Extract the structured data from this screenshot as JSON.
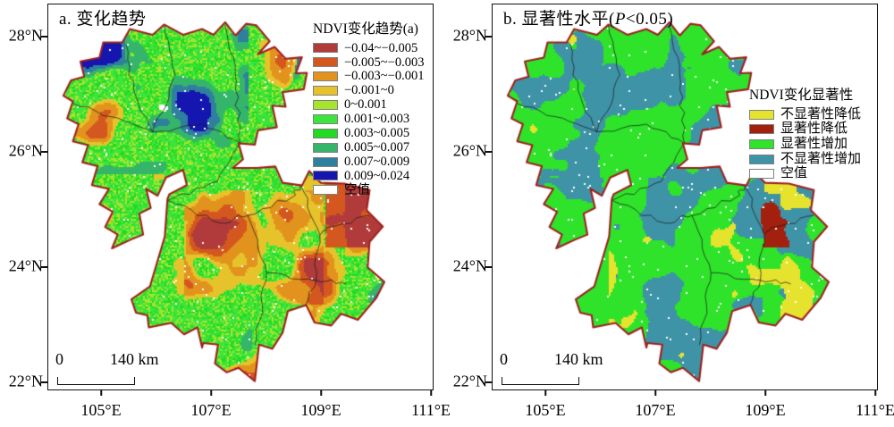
{
  "panels": [
    {
      "id": "a",
      "title": "a. 变化趋势",
      "legend": {
        "title": "NDVI变化趋势(a)",
        "items": [
          {
            "label": "−0.04~−0.005",
            "color": "#b13b3b"
          },
          {
            "label": "−0.005~−0.003",
            "color": "#d4571f"
          },
          {
            "label": "−0.003~−0.001",
            "color": "#e2931d"
          },
          {
            "label": "−0.001~0",
            "color": "#e6c32a"
          },
          {
            "label": "0~0.001",
            "color": "#a6e42d"
          },
          {
            "label": "0.001~0.003",
            "color": "#3ce43c"
          },
          {
            "label": "0.003~0.005",
            "color": "#22da22"
          },
          {
            "label": "0.005~0.007",
            "color": "#35b56a"
          },
          {
            "label": "0.007~0.009",
            "color": "#2f7f9e"
          },
          {
            "label": "0.009~0.024",
            "color": "#1515b0"
          },
          {
            "label": "空值",
            "color": "#ffffff"
          }
        ]
      },
      "x_ticks": [
        "105°E",
        "107°E",
        "109°E",
        "111°E"
      ],
      "y_ticks": [
        "28°N",
        "26°N",
        "24°N",
        "22°N"
      ],
      "scale_bar": {
        "zero": "0",
        "distance": "140 km"
      }
    },
    {
      "id": "b",
      "title_pre": "b. 显著性水平(",
      "title_italic": "P",
      "title_post": "<0.05)",
      "legend": {
        "title": "NDVI变化显著性",
        "items": [
          {
            "label": "不显著性降低",
            "color": "#e6e32e"
          },
          {
            "label": "显著性降低",
            "color": "#a3200e"
          },
          {
            "label": "显著性增加",
            "color": "#2ee32a"
          },
          {
            "label": "不显著性增加",
            "color": "#3f93a6"
          },
          {
            "label": "空值",
            "color": "#ffffff"
          }
        ]
      },
      "x_ticks": [
        "105°E",
        "107°E",
        "109°E",
        "111°E"
      ],
      "y_ticks": [
        "28°N",
        "26°N",
        "24°N",
        "22°N"
      ],
      "scale_bar": {
        "zero": "0",
        "distance": "140 km"
      }
    }
  ],
  "map": {
    "boundary_color": "#9f2020",
    "interior_line_color": "#1c1c1c",
    "background": "#ffffff"
  }
}
